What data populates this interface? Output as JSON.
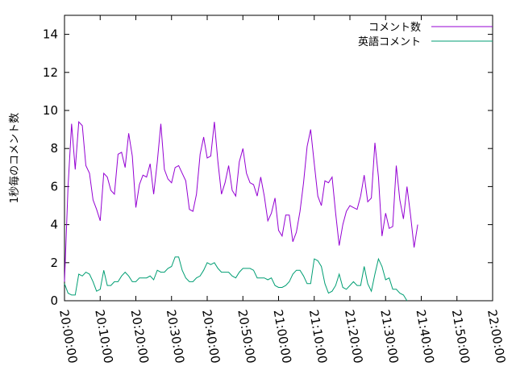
{
  "chart_data": {
    "type": "line",
    "title": "",
    "xlabel": "",
    "ylabel": "1秒毎のコメント数",
    "ylim": [
      0,
      15
    ],
    "yticks": [
      0,
      2,
      4,
      6,
      8,
      10,
      12,
      14
    ],
    "xlim": [
      "20:00:00",
      "22:00:00"
    ],
    "xticks": [
      "20:00:00",
      "20:10:00",
      "20:20:00",
      "20:30:00",
      "20:40:00",
      "20:50:00",
      "21:00:00",
      "21:10:00",
      "21:20:00",
      "21:30:00",
      "21:40:00",
      "21:50:00",
      "22:00:00"
    ],
    "grid": false,
    "legend_position": "top-right",
    "series": [
      {
        "name": "コメント数",
        "color": "#9400d3",
        "points": [
          [
            "20:00:00",
            1.0
          ],
          [
            "20:01:00",
            6.0
          ],
          [
            "20:02:00",
            9.3
          ],
          [
            "20:03:00",
            6.9
          ],
          [
            "20:04:00",
            9.4
          ],
          [
            "20:05:00",
            9.2
          ],
          [
            "20:06:00",
            7.1
          ],
          [
            "20:07:00",
            6.7
          ],
          [
            "20:08:00",
            5.3
          ],
          [
            "20:09:00",
            4.8
          ],
          [
            "20:10:00",
            4.2
          ],
          [
            "20:11:00",
            6.7
          ],
          [
            "20:12:00",
            6.5
          ],
          [
            "20:13:00",
            5.8
          ],
          [
            "20:14:00",
            5.6
          ],
          [
            "20:15:00",
            7.7
          ],
          [
            "20:16:00",
            7.8
          ],
          [
            "20:17:00",
            7.0
          ],
          [
            "20:18:00",
            8.8
          ],
          [
            "20:19:00",
            7.6
          ],
          [
            "20:20:00",
            4.9
          ],
          [
            "20:21:00",
            6.1
          ],
          [
            "20:22:00",
            6.6
          ],
          [
            "20:23:00",
            6.5
          ],
          [
            "20:24:00",
            7.2
          ],
          [
            "20:25:00",
            5.6
          ],
          [
            "20:26:00",
            7.3
          ],
          [
            "20:27:00",
            9.3
          ],
          [
            "20:28:00",
            6.9
          ],
          [
            "20:29:00",
            6.4
          ],
          [
            "20:30:00",
            6.2
          ],
          [
            "20:31:00",
            7.0
          ],
          [
            "20:32:00",
            7.1
          ],
          [
            "20:33:00",
            6.7
          ],
          [
            "20:34:00",
            6.3
          ],
          [
            "20:35:00",
            4.8
          ],
          [
            "20:36:00",
            4.7
          ],
          [
            "20:37:00",
            5.6
          ],
          [
            "20:38:00",
            7.7
          ],
          [
            "20:39:00",
            8.6
          ],
          [
            "20:40:00",
            7.5
          ],
          [
            "20:41:00",
            7.6
          ],
          [
            "20:42:00",
            9.4
          ],
          [
            "20:43:00",
            7.3
          ],
          [
            "20:44:00",
            5.6
          ],
          [
            "20:45:00",
            6.2
          ],
          [
            "20:46:00",
            7.1
          ],
          [
            "20:47:00",
            5.8
          ],
          [
            "20:48:00",
            5.5
          ],
          [
            "20:49:00",
            7.3
          ],
          [
            "20:50:00",
            8.0
          ],
          [
            "20:51:00",
            6.7
          ],
          [
            "20:52:00",
            6.2
          ],
          [
            "20:53:00",
            6.1
          ],
          [
            "20:54:00",
            5.5
          ],
          [
            "20:55:00",
            6.5
          ],
          [
            "20:56:00",
            5.5
          ],
          [
            "20:57:00",
            4.2
          ],
          [
            "20:58:00",
            4.6
          ],
          [
            "20:59:00",
            5.4
          ],
          [
            "21:00:00",
            3.7
          ],
          [
            "21:01:00",
            3.4
          ],
          [
            "21:02:00",
            4.5
          ],
          [
            "21:03:00",
            4.5
          ],
          [
            "21:04:00",
            3.1
          ],
          [
            "21:05:00",
            3.6
          ],
          [
            "21:06:00",
            4.7
          ],
          [
            "21:07:00",
            6.2
          ],
          [
            "21:08:00",
            8.1
          ],
          [
            "21:09:00",
            9.0
          ],
          [
            "21:10:00",
            7.2
          ],
          [
            "21:11:00",
            5.5
          ],
          [
            "21:12:00",
            5.0
          ],
          [
            "21:13:00",
            6.3
          ],
          [
            "21:14:00",
            6.2
          ],
          [
            "21:15:00",
            6.5
          ],
          [
            "21:16:00",
            4.6
          ],
          [
            "21:17:00",
            2.9
          ],
          [
            "21:18:00",
            4.0
          ],
          [
            "21:19:00",
            4.7
          ],
          [
            "21:20:00",
            5.0
          ],
          [
            "21:21:00",
            4.9
          ],
          [
            "21:22:00",
            4.8
          ],
          [
            "21:23:00",
            5.5
          ],
          [
            "21:24:00",
            6.6
          ],
          [
            "21:25:00",
            5.2
          ],
          [
            "21:26:00",
            5.4
          ],
          [
            "21:27:00",
            8.3
          ],
          [
            "21:28:00",
            6.5
          ],
          [
            "21:29:00",
            3.4
          ],
          [
            "21:30:00",
            4.6
          ],
          [
            "21:31:00",
            3.8
          ],
          [
            "21:32:00",
            3.9
          ],
          [
            "21:33:00",
            7.1
          ],
          [
            "21:34:00",
            5.3
          ],
          [
            "21:35:00",
            4.3
          ],
          [
            "21:36:00",
            6.0
          ],
          [
            "21:37:00",
            4.5
          ],
          [
            "21:38:00",
            2.8
          ],
          [
            "21:39:00",
            4.0
          ]
        ]
      },
      {
        "name": "英語コメント",
        "color": "#009e73",
        "points": [
          [
            "20:00:00",
            0.9
          ],
          [
            "20:01:00",
            0.4
          ],
          [
            "20:02:00",
            0.3
          ],
          [
            "20:03:00",
            0.3
          ],
          [
            "20:04:00",
            1.4
          ],
          [
            "20:05:00",
            1.3
          ],
          [
            "20:06:00",
            1.5
          ],
          [
            "20:07:00",
            1.4
          ],
          [
            "20:08:00",
            1.0
          ],
          [
            "20:09:00",
            0.5
          ],
          [
            "20:10:00",
            0.6
          ],
          [
            "20:11:00",
            1.6
          ],
          [
            "20:12:00",
            0.8
          ],
          [
            "20:13:00",
            0.8
          ],
          [
            "20:14:00",
            1.0
          ],
          [
            "20:15:00",
            1.0
          ],
          [
            "20:16:00",
            1.3
          ],
          [
            "20:17:00",
            1.5
          ],
          [
            "20:18:00",
            1.3
          ],
          [
            "20:19:00",
            1.0
          ],
          [
            "20:20:00",
            1.0
          ],
          [
            "20:21:00",
            1.2
          ],
          [
            "20:22:00",
            1.2
          ],
          [
            "20:23:00",
            1.2
          ],
          [
            "20:24:00",
            1.3
          ],
          [
            "20:25:00",
            1.1
          ],
          [
            "20:26:00",
            1.6
          ],
          [
            "20:27:00",
            1.5
          ],
          [
            "20:28:00",
            1.5
          ],
          [
            "20:29:00",
            1.7
          ],
          [
            "20:30:00",
            1.8
          ],
          [
            "20:31:00",
            2.3
          ],
          [
            "20:32:00",
            2.3
          ],
          [
            "20:33:00",
            1.6
          ],
          [
            "20:34:00",
            1.2
          ],
          [
            "20:35:00",
            1.0
          ],
          [
            "20:36:00",
            1.0
          ],
          [
            "20:37:00",
            1.2
          ],
          [
            "20:38:00",
            1.3
          ],
          [
            "20:39:00",
            1.6
          ],
          [
            "20:40:00",
            2.0
          ],
          [
            "20:41:00",
            1.9
          ],
          [
            "20:42:00",
            2.0
          ],
          [
            "20:43:00",
            1.7
          ],
          [
            "20:44:00",
            1.5
          ],
          [
            "20:45:00",
            1.5
          ],
          [
            "20:46:00",
            1.5
          ],
          [
            "20:47:00",
            1.3
          ],
          [
            "20:48:00",
            1.2
          ],
          [
            "20:49:00",
            1.5
          ],
          [
            "20:50:00",
            1.7
          ],
          [
            "20:51:00",
            1.7
          ],
          [
            "20:52:00",
            1.7
          ],
          [
            "20:53:00",
            1.6
          ],
          [
            "20:54:00",
            1.2
          ],
          [
            "20:55:00",
            1.2
          ],
          [
            "20:56:00",
            1.2
          ],
          [
            "20:57:00",
            1.1
          ],
          [
            "20:58:00",
            1.2
          ],
          [
            "20:59:00",
            0.8
          ],
          [
            "21:00:00",
            0.7
          ],
          [
            "21:01:00",
            0.7
          ],
          [
            "21:02:00",
            0.8
          ],
          [
            "21:03:00",
            1.0
          ],
          [
            "21:04:00",
            1.4
          ],
          [
            "21:05:00",
            1.6
          ],
          [
            "21:06:00",
            1.6
          ],
          [
            "21:07:00",
            1.3
          ],
          [
            "21:08:00",
            0.9
          ],
          [
            "21:09:00",
            0.9
          ],
          [
            "21:10:00",
            2.2
          ],
          [
            "21:11:00",
            2.1
          ],
          [
            "21:12:00",
            1.8
          ],
          [
            "21:13:00",
            0.9
          ],
          [
            "21:14:00",
            0.4
          ],
          [
            "21:15:00",
            0.5
          ],
          [
            "21:16:00",
            0.8
          ],
          [
            "21:17:00",
            1.4
          ],
          [
            "21:18:00",
            0.7
          ],
          [
            "21:19:00",
            0.6
          ],
          [
            "21:20:00",
            0.8
          ],
          [
            "21:21:00",
            1.0
          ],
          [
            "21:22:00",
            0.8
          ],
          [
            "21:23:00",
            0.8
          ],
          [
            "21:24:00",
            1.8
          ],
          [
            "21:25:00",
            0.9
          ],
          [
            "21:26:00",
            0.5
          ],
          [
            "21:27:00",
            1.4
          ],
          [
            "21:28:00",
            2.2
          ],
          [
            "21:29:00",
            1.8
          ],
          [
            "21:30:00",
            1.1
          ],
          [
            "21:31:00",
            1.2
          ],
          [
            "21:32:00",
            0.6
          ],
          [
            "21:33:00",
            0.6
          ],
          [
            "21:34:00",
            0.4
          ],
          [
            "21:35:00",
            0.3
          ],
          [
            "21:36:00",
            0.0
          ]
        ]
      }
    ]
  }
}
